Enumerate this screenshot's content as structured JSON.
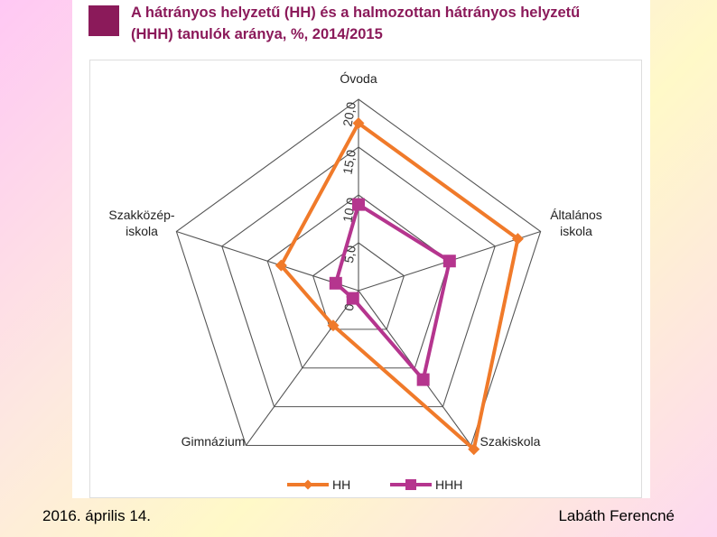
{
  "title": {
    "line1": "A hátrányos helyzetű (HH) és a halmozottan hátrányos helyzetű",
    "line2": "(HHH) tanulók aránya, %, 2014/2015"
  },
  "colors": {
    "title_text": "#8b1a5a",
    "title_square": "#8b1a5a",
    "grid": "#555555",
    "HH": "#f07a2a",
    "HHH": "#b5358e"
  },
  "footer": {
    "date": "2016. április 14.",
    "author": "Labáth Ferencné"
  },
  "chart_data": {
    "type": "radar",
    "title": "A hátrányos helyzetű (HH) és a halmozottan hátrányos helyzetű (HHH) tanulók aránya, %, 2014/2015",
    "axes": [
      [
        "Óvoda"
      ],
      [
        "Általános",
        "iskola"
      ],
      [
        "Szakiskola"
      ],
      [
        "Gimnázium"
      ],
      [
        "Szakközép-",
        "iskola"
      ]
    ],
    "range": [
      0,
      20
    ],
    "ticks": [
      "0,0",
      "5,0",
      "10,0",
      "15,0",
      "20,0"
    ],
    "tick_values": [
      0,
      5,
      10,
      15,
      20
    ],
    "series": [
      {
        "name": "HH",
        "values": [
          17.5,
          17.5,
          20.5,
          4.5,
          8.5
        ],
        "marker": "diamond"
      },
      {
        "name": "HHH",
        "values": [
          9.0,
          10.0,
          11.5,
          1.0,
          2.5
        ],
        "marker": "square"
      }
    ],
    "legend_position": "bottom",
    "grid": true
  }
}
